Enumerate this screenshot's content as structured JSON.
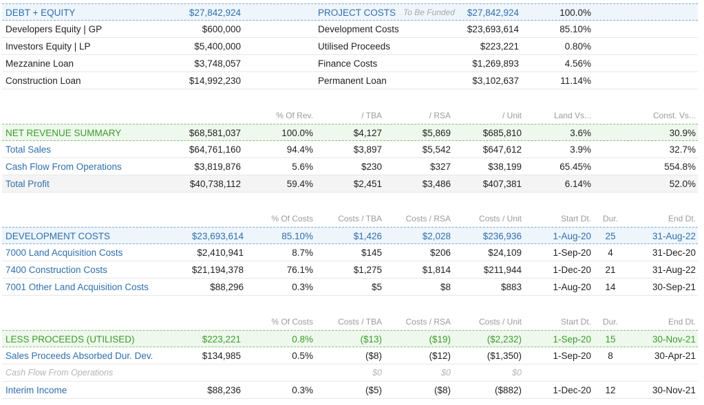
{
  "funding": {
    "debt_equity": {
      "label": "DEBT + EQUITY",
      "value": "$27,842,924"
    },
    "project_costs": {
      "label": "PROJECT COSTS",
      "note": "To Be Funded",
      "value": "$27,842,924",
      "pct": "100.0%"
    },
    "rows": [
      {
        "left_label": "Developers Equity | GP",
        "left_value": "$600,000",
        "right_label": "Development Costs",
        "right_value": "$23,693,614",
        "right_pct": "85.10%"
      },
      {
        "left_label": "Investors Equity | LP",
        "left_value": "$5,400,000",
        "right_label": "Utilised Proceeds",
        "right_value": "$223,221",
        "right_pct": "0.80%"
      },
      {
        "left_label": "Mezzanine Loan",
        "left_value": "$3,748,057",
        "right_label": "Finance Costs",
        "right_value": "$1,269,893",
        "right_pct": "4.56%"
      },
      {
        "left_label": "Construction Loan",
        "left_value": "$14,992,230",
        "right_label": "Permanent Loan",
        "right_value": "$3,102,637",
        "right_pct": "11.14%"
      }
    ]
  },
  "revenue": {
    "columns": [
      "% Of Rev.",
      "/ TBA",
      "/ RSA",
      "/ Unit",
      "Land Vs...",
      "Const. Vs..."
    ],
    "header": {
      "label": "NET REVENUE SUMMARY",
      "value": "$68,581,037",
      "c1": "100.0%",
      "c2": "$4,127",
      "c3": "$5,869",
      "c4": "$685,810",
      "c5": "3.6%",
      "c6": "30.9%"
    },
    "rows": [
      {
        "label": "Total Sales",
        "value": "$64,761,160",
        "c1": "94.4%",
        "c2": "$3,897",
        "c3": "$5,542",
        "c4": "$647,612",
        "c5": "3.9%",
        "c6": "32.7%"
      },
      {
        "label": "Cash Flow From Operations",
        "value": "$3,819,876",
        "c1": "5.6%",
        "c2": "$230",
        "c3": "$327",
        "c4": "$38,199",
        "c5": "65.45%",
        "c6": "554.8%"
      },
      {
        "label": "Total Profit",
        "value": "$40,738,112",
        "c1": "59.4%",
        "c2": "$2,451",
        "c3": "$3,486",
        "c4": "$407,381",
        "c5": "6.14%",
        "c6": "52.0%"
      }
    ]
  },
  "development": {
    "columns": [
      "% Of Costs",
      "Costs / TBA",
      "Costs / RSA",
      "Costs / Unit",
      "Start Dt.",
      "Dur.",
      "End Dt."
    ],
    "header": {
      "label": "DEVELOPMENT COSTS",
      "value": "$23,693,614",
      "c1": "85.10%",
      "c2": "$1,426",
      "c3": "$2,028",
      "c4": "$236,936",
      "start": "1-Aug-20",
      "dur": "25",
      "end": "31-Aug-22"
    },
    "rows": [
      {
        "label": "7000 Land Acquisition Costs",
        "value": "$2,410,941",
        "c1": "8.7%",
        "c2": "$145",
        "c3": "$206",
        "c4": "$24,109",
        "start": "1-Sep-20",
        "dur": "4",
        "end": "31-Dec-20"
      },
      {
        "label": "7400 Construction Costs",
        "value": "$21,194,378",
        "c1": "76.1%",
        "c2": "$1,275",
        "c3": "$1,814",
        "c4": "$211,944",
        "start": "1-Dec-20",
        "dur": "21",
        "end": "31-Aug-22"
      },
      {
        "label": "7001 Other Land Acquisition Costs",
        "value": "$88,296",
        "c1": "0.3%",
        "c2": "$5",
        "c3": "$8",
        "c4": "$883",
        "start": "1-Aug-20",
        "dur": "14",
        "end": "30-Sep-21"
      }
    ]
  },
  "proceeds": {
    "columns": [
      "% Of Costs",
      "Costs / TBA",
      "Costs / RSA",
      "Costs / Unit",
      "Start Dt.",
      "Dur.",
      "End Dt."
    ],
    "header": {
      "label": "LESS PROCEEDS (UTILISED)",
      "value": "$223,221",
      "c1": "0.8%",
      "c2": "($13)",
      "c3": "($19)",
      "c4": "($2,232)",
      "start": "1-Sep-20",
      "dur": "15",
      "end": "30-Nov-21"
    },
    "rows": [
      {
        "label": "Sales Proceeds Absorbed Dur. Dev.",
        "value": "$134,985",
        "c1": "0.5%",
        "c2": "($8)",
        "c3": "($12)",
        "c4": "($1,350)",
        "start": "1-Sep-20",
        "dur": "8",
        "end": "30-Apr-21"
      },
      {
        "label": "Cash Flow From Operations",
        "value": "",
        "c1": "",
        "c2": "$0",
        "c3": "$0",
        "c4": "$0",
        "start": "",
        "dur": "",
        "end": ""
      },
      {
        "label": "Interim Income",
        "value": "$88,236",
        "c1": "0.3%",
        "c2": "($5)",
        "c3": "($8)",
        "c4": "($882)",
        "start": "1-Dec-20",
        "dur": "12",
        "end": "30-Nov-21"
      }
    ]
  }
}
